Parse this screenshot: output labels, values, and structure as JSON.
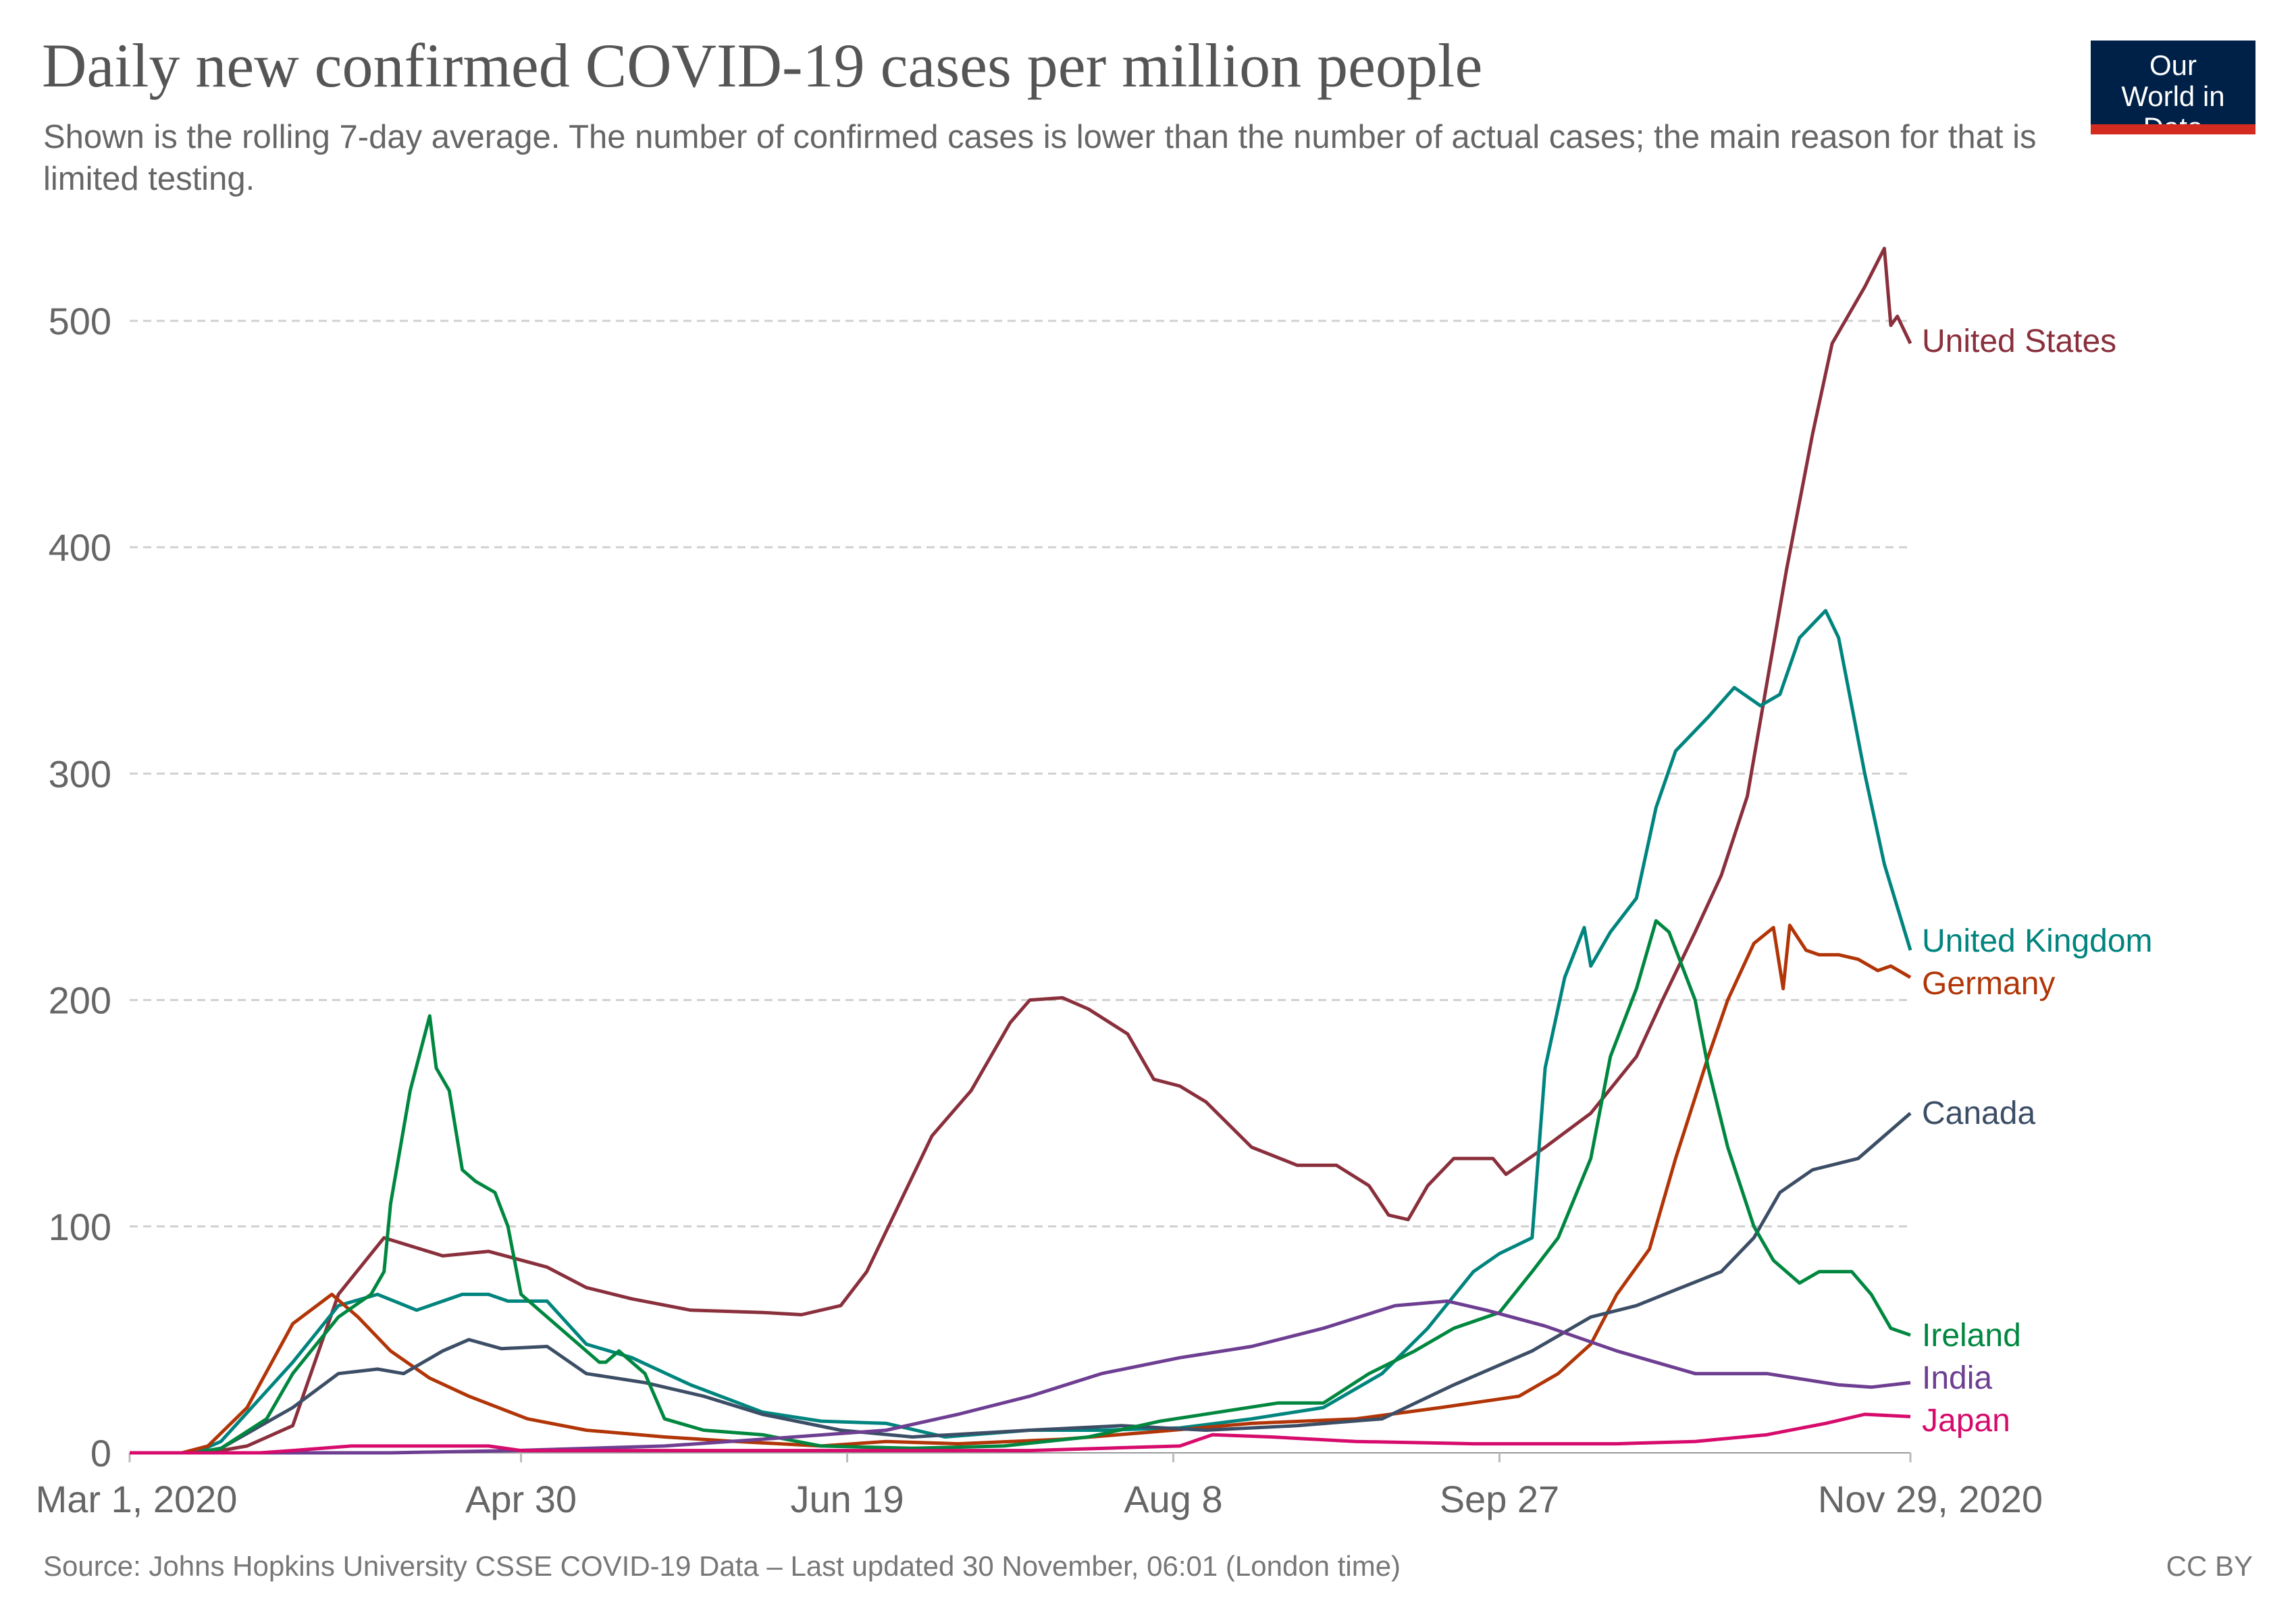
{
  "header": {
    "title": "Daily new confirmed COVID-19 cases per million people",
    "subtitle": "Shown is the rolling 7-day average. The number of confirmed cases is lower than the number of actual cases; the main reason for that is limited testing.",
    "logo_text": "Our World in Data"
  },
  "footer": {
    "source": "Source: Johns Hopkins University CSSE COVID-19 Data – Last updated 30 November, 06:01 (London time)",
    "license": "CC BY"
  },
  "chart_data": {
    "type": "line",
    "title": "Daily new confirmed COVID-19 cases per million people",
    "xlabel": "",
    "ylabel": "",
    "x_unit": "days since Mar 1, 2020",
    "xlim": [
      0,
      273
    ],
    "ylim": [
      0,
      540
    ],
    "grid": "horizontal dashed",
    "y_ticks": [
      0,
      100,
      200,
      300,
      400,
      500
    ],
    "x_ticks": [
      {
        "day": 0,
        "label": "Mar 1, 2020"
      },
      {
        "day": 60,
        "label": "Apr 30"
      },
      {
        "day": 110,
        "label": "Jun 19"
      },
      {
        "day": 160,
        "label": "Aug 8"
      },
      {
        "day": 210,
        "label": "Sep 27"
      },
      {
        "day": 273,
        "label": "Nov 29, 2020"
      }
    ],
    "legend": "end-of-line labels, right",
    "series": [
      {
        "name": "United States",
        "color": "#8a2f3c",
        "points": [
          [
            0,
            0
          ],
          [
            12,
            0
          ],
          [
            18,
            3
          ],
          [
            25,
            12
          ],
          [
            32,
            70
          ],
          [
            39,
            95
          ],
          [
            48,
            87
          ],
          [
            55,
            89
          ],
          [
            64,
            82
          ],
          [
            70,
            73
          ],
          [
            77,
            68
          ],
          [
            86,
            63
          ],
          [
            97,
            62
          ],
          [
            103,
            61
          ],
          [
            109,
            65
          ],
          [
            113,
            80
          ],
          [
            118,
            110
          ],
          [
            123,
            140
          ],
          [
            129,
            160
          ],
          [
            135,
            190
          ],
          [
            138,
            200
          ],
          [
            143,
            201
          ],
          [
            147,
            196
          ],
          [
            153,
            185
          ],
          [
            157,
            165
          ],
          [
            161,
            162
          ],
          [
            165,
            155
          ],
          [
            172,
            135
          ],
          [
            179,
            127
          ],
          [
            185,
            127
          ],
          [
            190,
            118
          ],
          [
            193,
            105
          ],
          [
            196,
            103
          ],
          [
            199,
            118
          ],
          [
            203,
            130
          ],
          [
            209,
            130
          ],
          [
            211,
            123
          ],
          [
            217,
            135
          ],
          [
            224,
            150
          ],
          [
            231,
            175
          ],
          [
            235,
            200
          ],
          [
            240,
            230
          ],
          [
            244,
            255
          ],
          [
            248,
            290
          ],
          [
            251,
            340
          ],
          [
            254,
            390
          ],
          [
            258,
            450
          ],
          [
            261,
            490
          ],
          [
            266,
            515
          ],
          [
            269,
            532
          ],
          [
            270,
            498
          ],
          [
            271,
            502
          ],
          [
            273,
            490
          ]
        ]
      },
      {
        "name": "United Kingdom",
        "color": "#00847e",
        "points": [
          [
            0,
            0
          ],
          [
            10,
            0
          ],
          [
            14,
            5
          ],
          [
            25,
            40
          ],
          [
            32,
            65
          ],
          [
            38,
            70
          ],
          [
            44,
            63
          ],
          [
            51,
            70
          ],
          [
            55,
            70
          ],
          [
            58,
            67
          ],
          [
            64,
            67
          ],
          [
            70,
            48
          ],
          [
            77,
            42
          ],
          [
            86,
            30
          ],
          [
            97,
            18
          ],
          [
            106,
            14
          ],
          [
            116,
            13
          ],
          [
            125,
            7
          ],
          [
            138,
            10
          ],
          [
            149,
            10
          ],
          [
            161,
            11
          ],
          [
            172,
            15
          ],
          [
            183,
            20
          ],
          [
            192,
            35
          ],
          [
            199,
            55
          ],
          [
            206,
            80
          ],
          [
            210,
            88
          ],
          [
            215,
            95
          ],
          [
            217,
            170
          ],
          [
            220,
            210
          ],
          [
            223,
            232
          ],
          [
            224,
            215
          ],
          [
            227,
            230
          ],
          [
            231,
            245
          ],
          [
            234,
            285
          ],
          [
            237,
            310
          ],
          [
            242,
            325
          ],
          [
            246,
            338
          ],
          [
            250,
            330
          ],
          [
            253,
            335
          ],
          [
            256,
            360
          ],
          [
            260,
            372
          ],
          [
            262,
            360
          ],
          [
            266,
            300
          ],
          [
            269,
            260
          ],
          [
            273,
            222
          ]
        ]
      },
      {
        "name": "Germany",
        "color": "#b13507",
        "points": [
          [
            0,
            0
          ],
          [
            8,
            0
          ],
          [
            12,
            3
          ],
          [
            18,
            20
          ],
          [
            25,
            57
          ],
          [
            31,
            70
          ],
          [
            35,
            60
          ],
          [
            40,
            45
          ],
          [
            46,
            33
          ],
          [
            52,
            25
          ],
          [
            61,
            15
          ],
          [
            70,
            10
          ],
          [
            82,
            7
          ],
          [
            93,
            5
          ],
          [
            106,
            3
          ],
          [
            116,
            5
          ],
          [
            127,
            4
          ],
          [
            143,
            6
          ],
          [
            156,
            9
          ],
          [
            172,
            13
          ],
          [
            188,
            15
          ],
          [
            201,
            20
          ],
          [
            213,
            25
          ],
          [
            219,
            35
          ],
          [
            224,
            48
          ],
          [
            228,
            70
          ],
          [
            233,
            90
          ],
          [
            237,
            130
          ],
          [
            242,
            175
          ],
          [
            245,
            200
          ],
          [
            249,
            225
          ],
          [
            252,
            232
          ],
          [
            253.5,
            205
          ],
          [
            254.5,
            233
          ],
          [
            257,
            222
          ],
          [
            259,
            220
          ],
          [
            262,
            220
          ],
          [
            265,
            218
          ],
          [
            268,
            213
          ],
          [
            270,
            215
          ],
          [
            273,
            210
          ]
        ]
      },
      {
        "name": "Canada",
        "color": "#3c4e66",
        "points": [
          [
            0,
            0
          ],
          [
            10,
            0
          ],
          [
            14,
            2
          ],
          [
            25,
            20
          ],
          [
            32,
            35
          ],
          [
            38,
            37
          ],
          [
            42,
            35
          ],
          [
            48,
            45
          ],
          [
            52,
            50
          ],
          [
            57,
            46
          ],
          [
            64,
            47
          ],
          [
            70,
            35
          ],
          [
            79,
            31
          ],
          [
            88,
            25
          ],
          [
            97,
            17
          ],
          [
            109,
            10
          ],
          [
            120,
            7
          ],
          [
            138,
            10
          ],
          [
            152,
            12
          ],
          [
            165,
            10
          ],
          [
            179,
            12
          ],
          [
            192,
            15
          ],
          [
            203,
            30
          ],
          [
            215,
            45
          ],
          [
            224,
            60
          ],
          [
            231,
            65
          ],
          [
            237,
            72
          ],
          [
            244,
            80
          ],
          [
            249,
            95
          ],
          [
            253,
            115
          ],
          [
            258,
            125
          ],
          [
            265,
            130
          ],
          [
            269,
            140
          ],
          [
            273,
            150
          ]
        ]
      },
      {
        "name": "Ireland",
        "color": "#00873f",
        "points": [
          [
            0,
            0
          ],
          [
            10,
            0
          ],
          [
            14,
            2
          ],
          [
            21,
            15
          ],
          [
            25,
            35
          ],
          [
            32,
            60
          ],
          [
            37,
            70
          ],
          [
            39,
            80
          ],
          [
            40,
            110
          ],
          [
            43,
            160
          ],
          [
            46,
            193
          ],
          [
            47,
            170
          ],
          [
            49,
            160
          ],
          [
            51,
            125
          ],
          [
            53,
            120
          ],
          [
            56,
            115
          ],
          [
            58,
            100
          ],
          [
            60,
            70
          ],
          [
            64,
            60
          ],
          [
            68,
            50
          ],
          [
            72,
            40
          ],
          [
            73,
            40
          ],
          [
            75,
            45
          ],
          [
            79,
            35
          ],
          [
            82,
            15
          ],
          [
            88,
            10
          ],
          [
            97,
            8
          ],
          [
            106,
            3
          ],
          [
            120,
            2
          ],
          [
            134,
            3
          ],
          [
            147,
            7
          ],
          [
            158,
            14
          ],
          [
            167,
            18
          ],
          [
            176,
            22
          ],
          [
            183,
            22
          ],
          [
            190,
            35
          ],
          [
            197,
            45
          ],
          [
            203,
            55
          ],
          [
            210,
            62
          ],
          [
            215,
            80
          ],
          [
            219,
            95
          ],
          [
            224,
            130
          ],
          [
            227,
            175
          ],
          [
            231,
            205
          ],
          [
            234,
            235
          ],
          [
            236,
            230
          ],
          [
            240,
            200
          ],
          [
            242,
            170
          ],
          [
            245,
            135
          ],
          [
            249,
            100
          ],
          [
            252,
            85
          ],
          [
            256,
            75
          ],
          [
            259,
            80
          ],
          [
            264,
            80
          ],
          [
            267,
            70
          ],
          [
            270,
            55
          ],
          [
            273,
            52
          ]
        ]
      },
      {
        "name": "India",
        "color": "#6d3e91",
        "points": [
          [
            0,
            0
          ],
          [
            40,
            0
          ],
          [
            59,
            1
          ],
          [
            82,
            3
          ],
          [
            97,
            6
          ],
          [
            116,
            10
          ],
          [
            127,
            17
          ],
          [
            138,
            25
          ],
          [
            149,
            35
          ],
          [
            161,
            42
          ],
          [
            172,
            47
          ],
          [
            183,
            55
          ],
          [
            194,
            65
          ],
          [
            202,
            67
          ],
          [
            208,
            63
          ],
          [
            217,
            56
          ],
          [
            228,
            45
          ],
          [
            240,
            35
          ],
          [
            251,
            35
          ],
          [
            262,
            30
          ],
          [
            267,
            29
          ],
          [
            273,
            31
          ]
        ]
      },
      {
        "name": "Japan",
        "color": "#d60b6c",
        "points": [
          [
            0,
            0
          ],
          [
            20,
            0
          ],
          [
            25,
            1
          ],
          [
            34,
            3
          ],
          [
            55,
            3
          ],
          [
            60,
            1
          ],
          [
            138,
            1
          ],
          [
            161,
            3
          ],
          [
            166,
            8
          ],
          [
            175,
            7
          ],
          [
            188,
            5
          ],
          [
            206,
            4
          ],
          [
            228,
            4
          ],
          [
            240,
            5
          ],
          [
            251,
            8
          ],
          [
            260,
            13
          ],
          [
            266,
            17
          ],
          [
            273,
            16
          ]
        ]
      }
    ]
  }
}
